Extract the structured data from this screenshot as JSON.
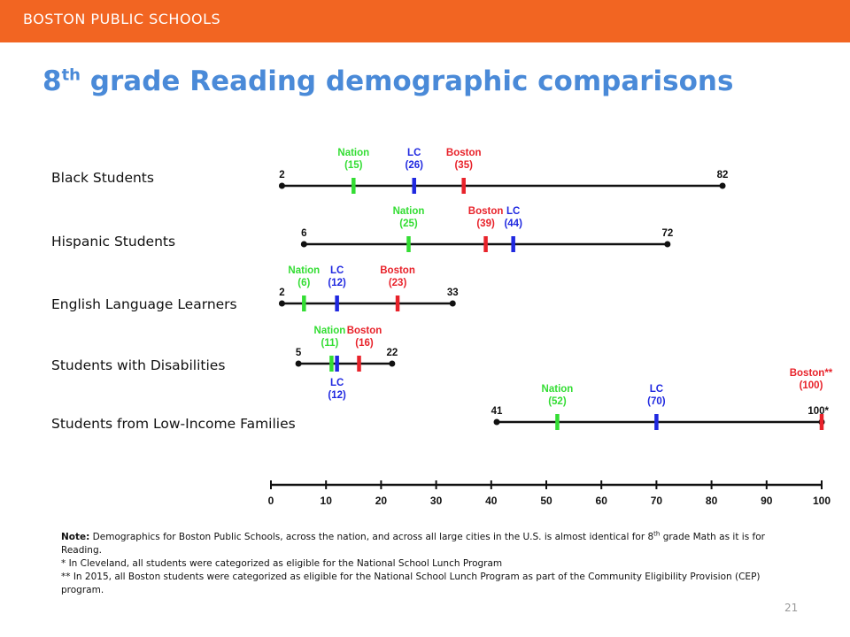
{
  "header": {
    "org_name": "BOSTON PUBLIC SCHOOLS"
  },
  "slide": {
    "title_main": "8",
    "title_sup": "th",
    "title_rest": " grade Reading demographic comparisons",
    "page_number": "21"
  },
  "colors": {
    "header": "#f26522",
    "title": "#4a8ad8",
    "nation": "#33dd33",
    "lc": "#1f28e0",
    "boston": "#e8222a",
    "axis": "#111111"
  },
  "notes": {
    "note_label": "Note:",
    "note_part1": " Demographics for Boston Public Schools, across the nation, and across all large cities in the U.S. is almost identical for 8",
    "note_sup": "th",
    "note_part2": " grade Math as it is for Reading.",
    "footnote1": "*   In Cleveland, all students were categorized as eligible for the National School Lunch Program",
    "footnote2": "** In 2015,  all Boston students were categorized as eligible for the National School Lunch Program as part of the Community Eligibility Provision (CEP) program."
  },
  "chart_data": {
    "type": "range-marker",
    "x_axis": {
      "min": 0,
      "max": 100,
      "ticks": [
        "0",
        "10",
        "20",
        "30",
        "40",
        "50",
        "60",
        "70",
        "80",
        "90",
        "100"
      ]
    },
    "rows": [
      {
        "label": "Black Students",
        "min": 2,
        "max": 82,
        "min_label": "2",
        "max_label": "82",
        "markers": [
          {
            "series": "nation",
            "value": 15,
            "name": "Nation",
            "value_label": "(15)",
            "label_side": "above"
          },
          {
            "series": "lc",
            "value": 26,
            "name": "LC",
            "value_label": "(26)",
            "label_side": "above"
          },
          {
            "series": "boston",
            "value": 35,
            "name": "Boston",
            "value_label": "(35)",
            "label_side": "above"
          }
        ]
      },
      {
        "label": "Hispanic Students",
        "min": 6,
        "max": 72,
        "min_label": "6",
        "max_label": "72",
        "markers": [
          {
            "series": "nation",
            "value": 25,
            "name": "Nation",
            "value_label": "(25)",
            "label_side": "above"
          },
          {
            "series": "boston",
            "value": 39,
            "name": "Boston",
            "value_label": "(39)",
            "label_side": "above"
          },
          {
            "series": "lc",
            "value": 44,
            "name": "LC",
            "value_label": "(44)",
            "label_side": "above"
          }
        ]
      },
      {
        "label": "English Language Learners",
        "min": 2,
        "max": 33,
        "min_label": "2",
        "max_label": "33",
        "markers": [
          {
            "series": "nation",
            "value": 6,
            "name": "Nation",
            "value_label": "(6)",
            "label_side": "above"
          },
          {
            "series": "lc",
            "value": 12,
            "name": "LC",
            "value_label": "(12)",
            "label_side": "above"
          },
          {
            "series": "boston",
            "value": 23,
            "name": "Boston",
            "value_label": "(23)",
            "label_side": "above"
          }
        ]
      },
      {
        "label": "Students with Disabilities",
        "min": 5,
        "max": 22,
        "min_label": "5",
        "max_label": "22",
        "markers": [
          {
            "series": "nation",
            "value": 11,
            "name": "Nation",
            "value_label": "(11)",
            "label_side": "above"
          },
          {
            "series": "lc",
            "value": 12,
            "name": "LC",
            "value_label": "(12)",
            "label_side": "below"
          },
          {
            "series": "boston",
            "value": 16,
            "name": "Boston",
            "value_label": "(16)",
            "label_side": "above"
          }
        ]
      },
      {
        "label": "Students from Low-Income Families",
        "min": 41,
        "max": 100,
        "min_label": "41",
        "max_label": "100*",
        "markers": [
          {
            "series": "nation",
            "value": 52,
            "name": "Nation",
            "value_label": "(52)",
            "label_side": "above"
          },
          {
            "series": "lc",
            "value": 70,
            "name": "LC",
            "value_label": "(70)",
            "label_side": "above"
          },
          {
            "series": "boston",
            "value": 100,
            "name": "Boston**",
            "value_label": "(100)",
            "label_side": "above"
          }
        ]
      }
    ]
  }
}
